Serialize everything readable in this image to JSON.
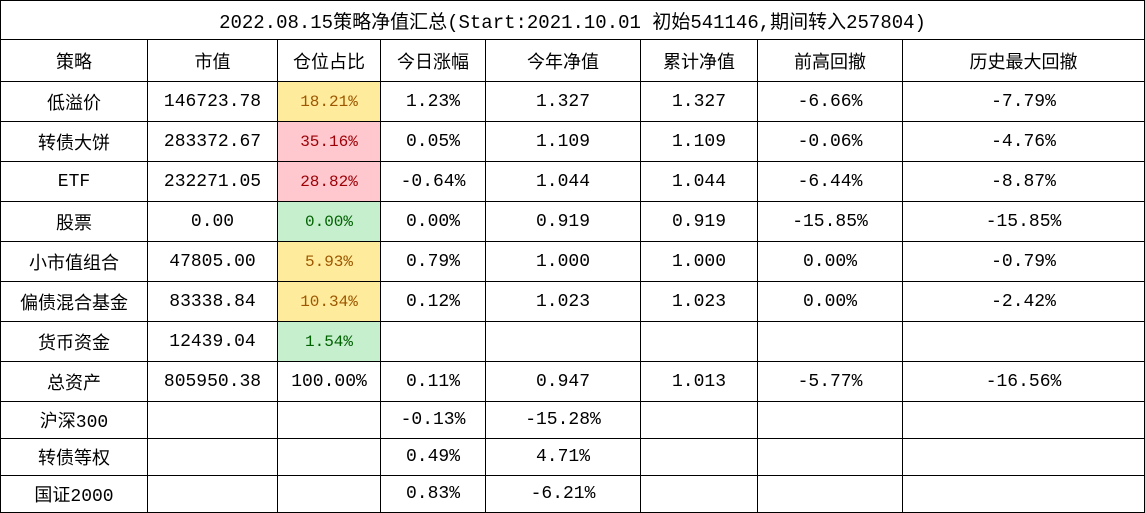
{
  "title": "2022.08.15策略净值汇总(Start:2021.10.01 初始541146,期间转入257804)",
  "table": {
    "header": [
      "策略",
      "市值",
      "仓位占比",
      "今日涨幅",
      "今年净值",
      "累计净值",
      "前高回撤",
      "历史最大回撤"
    ],
    "rows": [
      [
        "低溢价",
        "146723.78",
        "18.21%",
        "1.23%",
        "1.327",
        "1.327",
        "-6.66%",
        "-7.79%"
      ],
      [
        "转债大饼",
        "283372.67",
        "35.16%",
        "0.05%",
        "1.109",
        "1.109",
        "-0.06%",
        "-4.76%"
      ],
      [
        "ETF",
        "232271.05",
        "28.82%",
        "-0.64%",
        "1.044",
        "1.044",
        "-6.44%",
        "-8.87%"
      ],
      [
        "股票",
        "0.00",
        "0.00%",
        "0.00%",
        "0.919",
        "0.919",
        "-15.85%",
        "-15.85%"
      ],
      [
        "小市值组合",
        "47805.00",
        "5.93%",
        "0.79%",
        "1.000",
        "1.000",
        "0.00%",
        "-0.79%"
      ],
      [
        "偏债混合基金",
        "83338.84",
        "10.34%",
        "0.12%",
        "1.023",
        "1.023",
        "0.00%",
        "-2.42%"
      ],
      [
        "货币资金",
        "12439.04",
        "1.54%"
      ],
      [
        "总资产",
        "805950.38",
        "100.00%",
        "0.11%",
        "0.947",
        "1.013",
        "-5.77%",
        "-16.56%"
      ],
      [
        "沪深300",
        null,
        null,
        "-0.13%",
        "-15.28%"
      ],
      [
        "转债等权",
        null,
        null,
        "0.49%",
        "4.71%"
      ],
      [
        "国证2000",
        null,
        null,
        "0.83%",
        "-6.21%"
      ]
    ]
  }
}
